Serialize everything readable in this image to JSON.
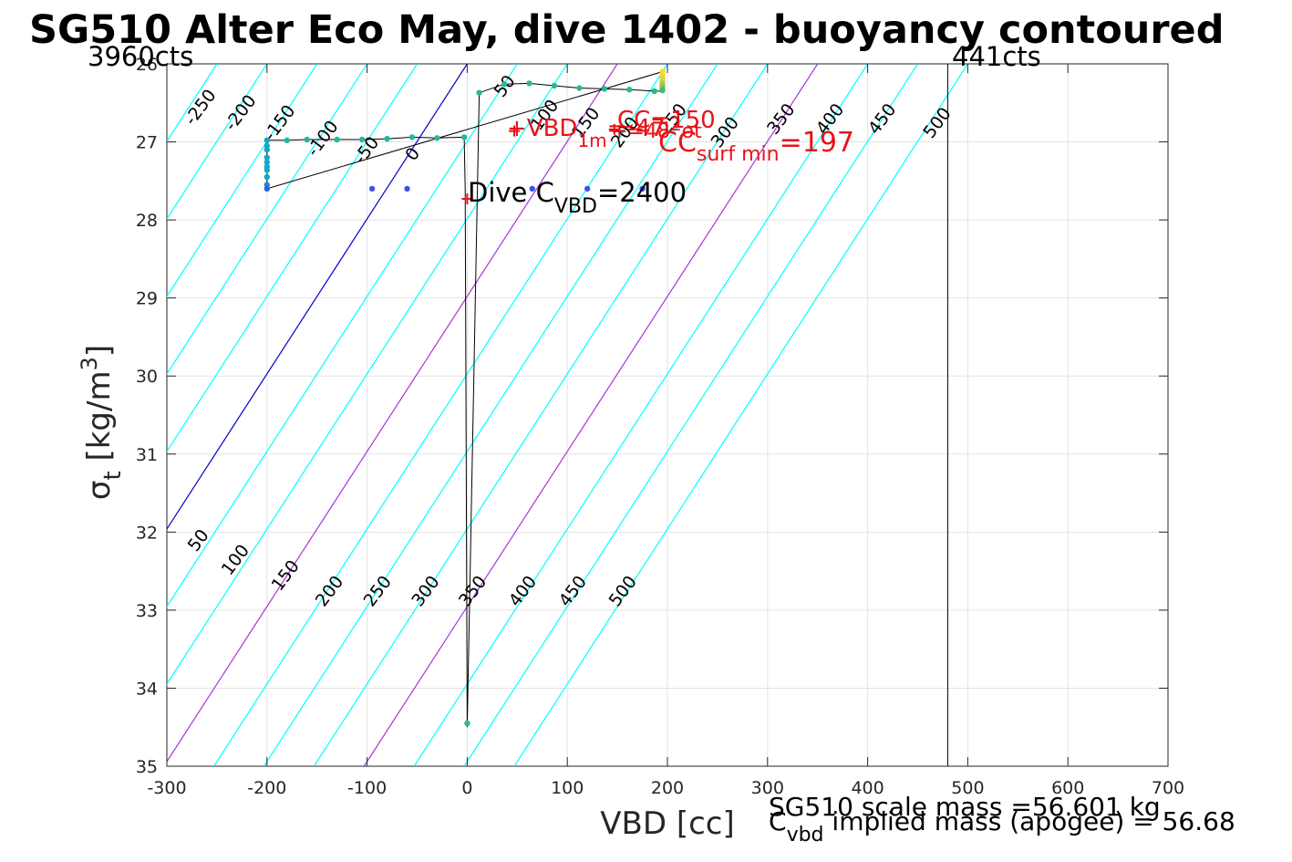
{
  "title": "SG510 Alter Eco May, dive 1402 - buoyancy contoured",
  "chart_data": {
    "type": "scatter",
    "title": "SG510 Alter Eco May, dive 1402 - buoyancy contoured",
    "xlabel": "VBD [cc]",
    "ylabel": {
      "symbol": "σ",
      "sub": "t",
      "unit": " [kg/m",
      "sup": "3",
      "close": "]"
    },
    "xlim": [
      -300,
      700
    ],
    "ylim": [
      26,
      35
    ],
    "y_reversed": true,
    "grid": true,
    "x_ticks": [
      -300,
      -200,
      -100,
      0,
      100,
      200,
      300,
      400,
      500,
      600,
      700
    ],
    "x_tick_labels": [
      "-300",
      "-200",
      "-100",
      "0",
      "100",
      "200",
      "300",
      "400",
      "500",
      "600",
      "700"
    ],
    "y_ticks": [
      26,
      27,
      28,
      29,
      30,
      31,
      32,
      33,
      34,
      35
    ],
    "y_tick_labels": [
      "26",
      "27",
      "28",
      "29",
      "30",
      "31",
      "32",
      "33",
      "34",
      "35"
    ],
    "contour_levels": [
      -250,
      -200,
      -150,
      -100,
      -50,
      0,
      50,
      100,
      150,
      200,
      250,
      300,
      350,
      400,
      450,
      500
    ],
    "contour_colors": {
      "default": "#00ffff",
      "0": "#0000cc",
      "150": "#aa33dd",
      "350": "#aa33dd"
    },
    "contour_labels_top": [
      {
        "t": "-250",
        "x": -262,
        "y": 26.6
      },
      {
        "t": "-200",
        "x": -222,
        "y": 26.67
      },
      {
        "t": "-150",
        "x": -183,
        "y": 26.8
      },
      {
        "t": "-100",
        "x": -140,
        "y": 27.0
      },
      {
        "t": "-50",
        "x": -96,
        "y": 27.15
      },
      {
        "t": "0",
        "x": -50,
        "y": 27.2
      },
      {
        "t": "50",
        "x": 42,
        "y": 26.33
      },
      {
        "t": "100",
        "x": 82,
        "y": 26.7
      },
      {
        "t": "150",
        "x": 123,
        "y": 26.8
      },
      {
        "t": "200",
        "x": 162,
        "y": 26.92
      },
      {
        "t": "250",
        "x": 210,
        "y": 26.75
      },
      {
        "t": "300",
        "x": 262,
        "y": 26.92
      },
      {
        "t": "350",
        "x": 318,
        "y": 26.75
      },
      {
        "t": "400",
        "x": 367,
        "y": 26.75
      },
      {
        "t": "450",
        "x": 419,
        "y": 26.75
      },
      {
        "t": "500",
        "x": 474,
        "y": 26.8
      }
    ],
    "contour_labels_bottom": [
      {
        "t": "50",
        "x": -264,
        "y": 32.15
      },
      {
        "t": "100",
        "x": -227,
        "y": 32.4
      },
      {
        "t": "150",
        "x": -177,
        "y": 32.6
      },
      {
        "t": "200",
        "x": -133,
        "y": 32.8
      },
      {
        "t": "250",
        "x": -85,
        "y": 32.8
      },
      {
        "t": "300",
        "x": -37,
        "y": 32.8
      },
      {
        "t": "350",
        "x": 10,
        "y": 32.8
      },
      {
        "t": "400",
        "x": 60,
        "y": 32.8
      },
      {
        "t": "450",
        "x": 110,
        "y": 32.8
      },
      {
        "t": "500",
        "x": 160,
        "y": 32.8
      }
    ],
    "trace": [
      [
        -200,
        27.6
      ],
      [
        -200,
        26.98
      ],
      [
        -180,
        26.98
      ],
      [
        -160,
        26.97
      ],
      [
        -130,
        26.97
      ],
      [
        -105,
        26.97
      ],
      [
        -80,
        26.96
      ],
      [
        -55,
        26.94
      ],
      [
        -30,
        26.95
      ],
      [
        -3,
        26.94
      ],
      [
        -2,
        27.6
      ],
      [
        0,
        34.5
      ],
      [
        12,
        26.37
      ],
      [
        37,
        26.26
      ],
      [
        62,
        26.25
      ],
      [
        87,
        26.28
      ],
      [
        112,
        26.31
      ],
      [
        137,
        26.32
      ],
      [
        162,
        26.33
      ],
      [
        187,
        26.35
      ],
      [
        195,
        26.35
      ],
      [
        195,
        26.1
      ],
      [
        -200,
        27.6
      ]
    ],
    "points": [
      {
        "x": 12,
        "y": 26.37,
        "c": "#2bb88c"
      },
      {
        "x": 37,
        "y": 26.26,
        "c": "#2bb88c"
      },
      {
        "x": 62,
        "y": 26.25,
        "c": "#2bb88c"
      },
      {
        "x": 87,
        "y": 26.28,
        "c": "#2bb88c"
      },
      {
        "x": 112,
        "y": 26.31,
        "c": "#2bb88c"
      },
      {
        "x": 137,
        "y": 26.32,
        "c": "#2bb88c"
      },
      {
        "x": 162,
        "y": 26.33,
        "c": "#2bb88c"
      },
      {
        "x": 187,
        "y": 26.35,
        "c": "#2bb88c"
      },
      {
        "x": 195,
        "y": 26.1,
        "c": "#f5e020"
      },
      {
        "x": 195,
        "y": 26.13,
        "c": "#f5e020"
      },
      {
        "x": 195,
        "y": 26.16,
        "c": "#f2d830"
      },
      {
        "x": 195,
        "y": 26.19,
        "c": "#e8d040"
      },
      {
        "x": 195,
        "y": 26.22,
        "c": "#d8d040"
      },
      {
        "x": 195,
        "y": 26.25,
        "c": "#b8cc48"
      },
      {
        "x": 195,
        "y": 26.28,
        "c": "#98c850"
      },
      {
        "x": 195,
        "y": 26.31,
        "c": "#70c060"
      },
      {
        "x": 195,
        "y": 26.34,
        "c": "#40b878"
      },
      {
        "x": -180,
        "y": 26.98,
        "c": "#22b8a0"
      },
      {
        "x": -160,
        "y": 26.97,
        "c": "#22b8a0"
      },
      {
        "x": -130,
        "y": 26.97,
        "c": "#22b8a0"
      },
      {
        "x": -105,
        "y": 26.97,
        "c": "#22b8a0"
      },
      {
        "x": -80,
        "y": 26.96,
        "c": "#22b8a0"
      },
      {
        "x": -55,
        "y": 26.94,
        "c": "#22b8a0"
      },
      {
        "x": -30,
        "y": 26.95,
        "c": "#22b8a0"
      },
      {
        "x": -3,
        "y": 26.94,
        "c": "#22b8a0"
      },
      {
        "x": -200,
        "y": 26.98,
        "c": "#10a8c8"
      },
      {
        "x": -200,
        "y": 27.05,
        "c": "#10a8c8"
      },
      {
        "x": -200,
        "y": 27.1,
        "c": "#10a8c8"
      },
      {
        "x": -200,
        "y": 27.2,
        "c": "#10a8c8"
      },
      {
        "x": -200,
        "y": 27.26,
        "c": "#10a8c8"
      },
      {
        "x": -200,
        "y": 27.32,
        "c": "#10a8c8"
      },
      {
        "x": -200,
        "y": 27.36,
        "c": "#10a8c8"
      },
      {
        "x": -200,
        "y": 27.45,
        "c": "#10a8c8"
      },
      {
        "x": -200,
        "y": 27.55,
        "c": "#1e88d8"
      },
      {
        "x": -200,
        "y": 27.6,
        "c": "#3060e0"
      },
      {
        "x": -95,
        "y": 27.6,
        "c": "#3c55e8"
      },
      {
        "x": -60,
        "y": 27.6,
        "c": "#3c55e8"
      },
      {
        "x": 65,
        "y": 27.6,
        "c": "#3c55e8"
      },
      {
        "x": 120,
        "y": 27.6,
        "c": "#3c55e8"
      },
      {
        "x": 175,
        "y": 27.6,
        "c": "#3c55e8"
      },
      {
        "x": 0,
        "y": 34.45,
        "c": "#2bb88c"
      }
    ],
    "red_markers": [
      {
        "x": 47,
        "y": 26.86
      },
      {
        "x": 147,
        "y": 26.84
      },
      {
        "x": 0,
        "y": 27.73
      }
    ],
    "vertical_line_x": 480,
    "counts_left": "3960cts",
    "counts_right": "441cts",
    "annotations": {
      "vbd": {
        "pre": "+VBD",
        "sub": "1m",
        "post": "=-47"
      },
      "cc_top": "CC=150",
      "cc_mid": {
        "pre": "+=48",
        "sup": "2",
        "post": "ot"
      },
      "cc_surf": {
        "pre": "CC",
        "sub": "surf min",
        "post": "=197"
      },
      "dive": {
        "pre": "Dive C",
        "sub": "VBD",
        "post": "=2400"
      }
    },
    "footer": {
      "scale_mass": "SG510 scale mass =56.601 kg",
      "implied": {
        "pre": "C",
        "sub": "vbd",
        "post": " implied mass (apogee) = 56.68"
      }
    }
  }
}
